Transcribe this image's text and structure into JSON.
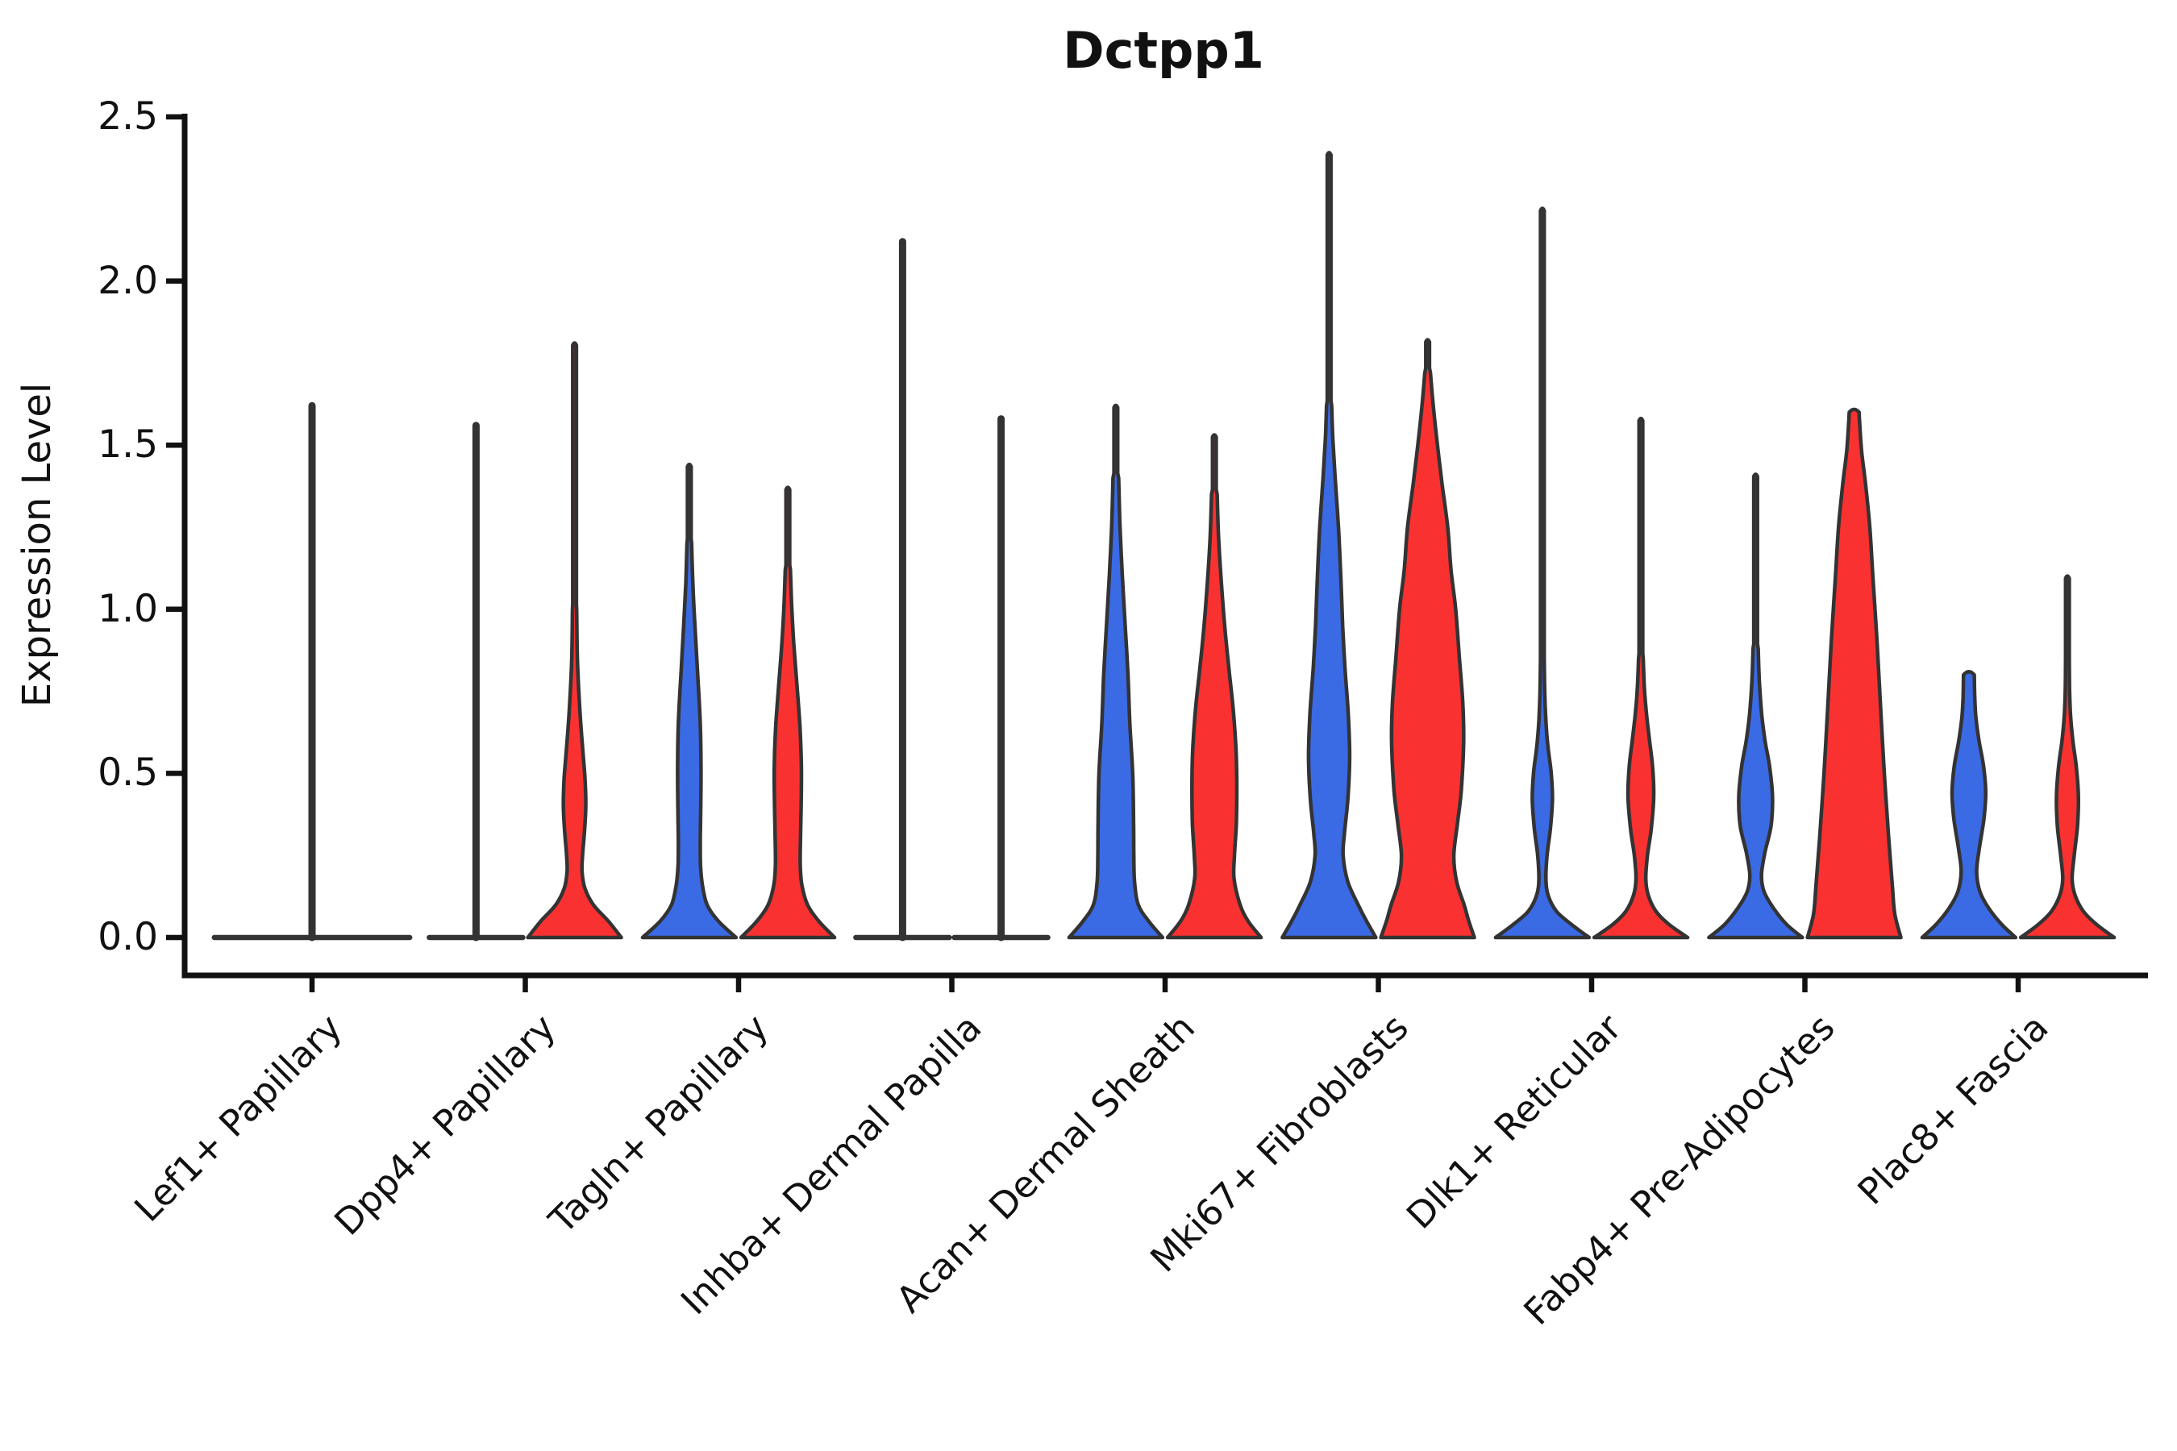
{
  "title": "Dctpp1",
  "ylabel": "Expression Level",
  "chart_data": {
    "type": "violin",
    "title": "Dctpp1",
    "xlabel": "",
    "ylabel": "Expression Level",
    "ylim": [
      -0.12,
      2.5
    ],
    "yticks": [
      0.0,
      0.5,
      1.0,
      1.5,
      2.0,
      2.5
    ],
    "ytick_labels": [
      "0.0",
      "0.5",
      "1.0",
      "1.5",
      "2.0",
      "2.5"
    ],
    "grid": false,
    "legend": "none",
    "outline_color": "#333333",
    "group_colors": {
      "blue": "#3B6AE5",
      "red": "#FA3131"
    },
    "categories": [
      "Lef1+ Papillary",
      "Dpp4+ Papillary",
      "Tagln+ Papillary",
      "Inhba+ Dermal Papilla",
      "Acan+ Dermal Sheath",
      "Mki67+ Fibroblasts",
      "Dlk1+ Reticular",
      "Fabp4+ Pre-Adipocytes",
      "Plac8+ Fascia"
    ],
    "cells": [
      {
        "category": "Lef1+ Papillary",
        "violins": [
          {
            "group": "single",
            "color": null,
            "offset": 0,
            "width": 2.09,
            "max": 1.62,
            "profile": [
              [
                0,
                1.0
              ]
            ]
          }
        ]
      },
      {
        "category": "Dpp4+ Papillary",
        "violins": [
          {
            "group": "blue",
            "color": "#3B6AE5",
            "offset": -0.231,
            "width": 1.0,
            "max": 1.56,
            "profile": [
              [
                0,
                1.0
              ]
            ]
          },
          {
            "group": "red",
            "color": "#FA3131",
            "offset": 0.231,
            "width": 1.0,
            "max": 1.81,
            "profile": [
              [
                0,
                1.0
              ],
              [
                0.05,
                0.72
              ],
              [
                0.1,
                0.4
              ],
              [
                0.15,
                0.22
              ],
              [
                0.2,
                0.16
              ],
              [
                0.25,
                0.17
              ],
              [
                0.32,
                0.21
              ],
              [
                0.4,
                0.24
              ],
              [
                0.48,
                0.225
              ],
              [
                0.58,
                0.17
              ],
              [
                0.7,
                0.11
              ],
              [
                0.85,
                0.06
              ],
              [
                1.0,
                0.045
              ]
            ]
          }
        ]
      },
      {
        "category": "Tagln+ Papillary",
        "violins": [
          {
            "group": "blue",
            "color": "#3B6AE5",
            "offset": -0.231,
            "width": 1.0,
            "max": 1.44,
            "profile": [
              [
                0,
                1.0
              ],
              [
                0.05,
                0.62
              ],
              [
                0.1,
                0.38
              ],
              [
                0.16,
                0.28
              ],
              [
                0.22,
                0.24
              ],
              [
                0.3,
                0.235
              ],
              [
                0.4,
                0.245
              ],
              [
                0.52,
                0.25
              ],
              [
                0.65,
                0.235
              ],
              [
                0.8,
                0.18
              ],
              [
                0.95,
                0.12
              ],
              [
                1.08,
                0.075
              ],
              [
                1.2,
                0.05
              ]
            ]
          },
          {
            "group": "red",
            "color": "#FA3131",
            "offset": 0.231,
            "width": 1.0,
            "max": 1.37,
            "profile": [
              [
                0,
                1.0
              ],
              [
                0.05,
                0.66
              ],
              [
                0.1,
                0.42
              ],
              [
                0.16,
                0.3
              ],
              [
                0.22,
                0.265
              ],
              [
                0.3,
                0.27
              ],
              [
                0.4,
                0.285
              ],
              [
                0.52,
                0.29
              ],
              [
                0.64,
                0.26
              ],
              [
                0.76,
                0.2
              ],
              [
                0.9,
                0.125
              ],
              [
                1.02,
                0.08
              ],
              [
                1.12,
                0.055
              ]
            ]
          }
        ]
      },
      {
        "category": "Inhba+ Dermal Papilla",
        "violins": [
          {
            "group": "blue",
            "color": "#3B6AE5",
            "offset": -0.231,
            "width": 1.0,
            "max": 2.12,
            "profile": [
              [
                0,
                1.0
              ]
            ]
          },
          {
            "group": "red",
            "color": "#FA3131",
            "offset": 0.231,
            "width": 1.0,
            "max": 1.58,
            "profile": [
              [
                0,
                1.0
              ]
            ]
          }
        ]
      },
      {
        "category": "Acan+ Dermal Sheath",
        "violins": [
          {
            "group": "blue",
            "color": "#3B6AE5",
            "offset": -0.231,
            "width": 1.0,
            "max": 1.62,
            "profile": [
              [
                0,
                1.0
              ],
              [
                0.05,
                0.7
              ],
              [
                0.1,
                0.48
              ],
              [
                0.17,
                0.4
              ],
              [
                0.25,
                0.385
              ],
              [
                0.35,
                0.38
              ],
              [
                0.5,
                0.36
              ],
              [
                0.65,
                0.3
              ],
              [
                0.8,
                0.26
              ],
              [
                0.95,
                0.2
              ],
              [
                1.1,
                0.14
              ],
              [
                1.25,
                0.09
              ],
              [
                1.4,
                0.06
              ]
            ]
          },
          {
            "group": "red",
            "color": "#FA3131",
            "offset": 0.231,
            "width": 1.0,
            "max": 1.53,
            "profile": [
              [
                0,
                1.0
              ],
              [
                0.05,
                0.72
              ],
              [
                0.1,
                0.55
              ],
              [
                0.18,
                0.42
              ],
              [
                0.25,
                0.43
              ],
              [
                0.35,
                0.47
              ],
              [
                0.47,
                0.48
              ],
              [
                0.58,
                0.46
              ],
              [
                0.7,
                0.4
              ],
              [
                0.82,
                0.31
              ],
              [
                0.95,
                0.22
              ],
              [
                1.08,
                0.15
              ],
              [
                1.22,
                0.09
              ],
              [
                1.35,
                0.06
              ]
            ]
          }
        ]
      },
      {
        "category": "Mki67+ Fibroblasts",
        "violins": [
          {
            "group": "blue",
            "color": "#3B6AE5",
            "offset": -0.231,
            "width": 1.0,
            "max": 2.39,
            "profile": [
              [
                0,
                1.0
              ],
              [
                0.05,
                0.8
              ],
              [
                0.1,
                0.62
              ],
              [
                0.17,
                0.4
              ],
              [
                0.25,
                0.3
              ],
              [
                0.32,
                0.33
              ],
              [
                0.42,
                0.4
              ],
              [
                0.55,
                0.44
              ],
              [
                0.68,
                0.41
              ],
              [
                0.82,
                0.34
              ],
              [
                0.95,
                0.29
              ],
              [
                1.1,
                0.25
              ],
              [
                1.25,
                0.2
              ],
              [
                1.4,
                0.13
              ],
              [
                1.52,
                0.08
              ],
              [
                1.62,
                0.055
              ]
            ]
          },
          {
            "group": "red",
            "color": "#FA3131",
            "offset": 0.231,
            "width": 1.0,
            "max": 1.82,
            "profile": [
              [
                0,
                1.0
              ],
              [
                0.05,
                0.88
              ],
              [
                0.1,
                0.78
              ],
              [
                0.17,
                0.62
              ],
              [
                0.25,
                0.56
              ],
              [
                0.35,
                0.64
              ],
              [
                0.45,
                0.72
              ],
              [
                0.6,
                0.77
              ],
              [
                0.72,
                0.75
              ],
              [
                0.85,
                0.68
              ],
              [
                1.0,
                0.6
              ],
              [
                1.12,
                0.5
              ],
              [
                1.25,
                0.43
              ],
              [
                1.38,
                0.31
              ],
              [
                1.5,
                0.21
              ],
              [
                1.62,
                0.12
              ],
              [
                1.72,
                0.06
              ]
            ]
          }
        ]
      },
      {
        "category": "Dlk1+ Reticular",
        "violins": [
          {
            "group": "blue",
            "color": "#3B6AE5",
            "offset": -0.231,
            "width": 1.0,
            "max": 2.22,
            "profile": [
              [
                0,
                1.0
              ],
              [
                0.04,
                0.62
              ],
              [
                0.08,
                0.3
              ],
              [
                0.13,
                0.12
              ],
              [
                0.18,
                0.075
              ],
              [
                0.25,
                0.1
              ],
              [
                0.33,
                0.17
              ],
              [
                0.42,
                0.215
              ],
              [
                0.5,
                0.19
              ],
              [
                0.58,
                0.12
              ],
              [
                0.66,
                0.075
              ],
              [
                0.75,
                0.05
              ],
              [
                0.85,
                0.04
              ]
            ]
          },
          {
            "group": "red",
            "color": "#FA3131",
            "offset": 0.231,
            "width": 1.0,
            "max": 1.58,
            "profile": [
              [
                0,
                1.0
              ],
              [
                0.04,
                0.6
              ],
              [
                0.08,
                0.32
              ],
              [
                0.13,
                0.155
              ],
              [
                0.18,
                0.105
              ],
              [
                0.25,
                0.14
              ],
              [
                0.33,
                0.22
              ],
              [
                0.43,
                0.275
              ],
              [
                0.52,
                0.25
              ],
              [
                0.6,
                0.185
              ],
              [
                0.68,
                0.12
              ],
              [
                0.76,
                0.075
              ],
              [
                0.85,
                0.05
              ]
            ]
          }
        ]
      },
      {
        "category": "Fabp4+ Pre-Adipocytes",
        "violins": [
          {
            "group": "blue",
            "color": "#3B6AE5",
            "offset": -0.231,
            "width": 1.0,
            "max": 1.41,
            "profile": [
              [
                0,
                1.0
              ],
              [
                0.04,
                0.66
              ],
              [
                0.09,
                0.38
              ],
              [
                0.14,
                0.18
              ],
              [
                0.19,
                0.125
              ],
              [
                0.26,
                0.2
              ],
              [
                0.34,
                0.33
              ],
              [
                0.43,
                0.36
              ],
              [
                0.52,
                0.3
              ],
              [
                0.6,
                0.2
              ],
              [
                0.68,
                0.13
              ],
              [
                0.78,
                0.08
              ],
              [
                0.88,
                0.055
              ]
            ]
          },
          {
            "group": "red",
            "color": "#FA3131",
            "offset": 0.231,
            "width": 1.0,
            "max": 1.6,
            "profile": [
              [
                0,
                1.0
              ],
              [
                0.07,
                0.87
              ],
              [
                0.15,
                0.82
              ],
              [
                0.3,
                0.74
              ],
              [
                0.5,
                0.645
              ],
              [
                0.7,
                0.565
              ],
              [
                0.9,
                0.49
              ],
              [
                1.1,
                0.4
              ],
              [
                1.25,
                0.335
              ],
              [
                1.38,
                0.245
              ],
              [
                1.48,
                0.16
              ],
              [
                1.56,
                0.12
              ],
              [
                1.6,
                0.105
              ]
            ]
          }
        ]
      },
      {
        "category": "Plac8+ Fascia",
        "violins": [
          {
            "group": "blue",
            "color": "#3B6AE5",
            "offset": -0.231,
            "width": 1.0,
            "max": 0.8,
            "profile": [
              [
                0,
                1.0
              ],
              [
                0.04,
                0.7
              ],
              [
                0.09,
                0.42
              ],
              [
                0.14,
                0.235
              ],
              [
                0.2,
                0.165
              ],
              [
                0.27,
                0.22
              ],
              [
                0.36,
                0.32
              ],
              [
                0.44,
                0.36
              ],
              [
                0.52,
                0.315
              ],
              [
                0.6,
                0.215
              ],
              [
                0.67,
                0.15
              ],
              [
                0.73,
                0.125
              ],
              [
                0.8,
                0.115
              ]
            ]
          },
          {
            "group": "red",
            "color": "#FA3131",
            "offset": 0.231,
            "width": 1.0,
            "max": 1.1,
            "profile": [
              [
                0,
                1.0
              ],
              [
                0.04,
                0.62
              ],
              [
                0.08,
                0.34
              ],
              [
                0.13,
                0.16
              ],
              [
                0.18,
                0.1
              ],
              [
                0.25,
                0.145
              ],
              [
                0.34,
                0.215
              ],
              [
                0.43,
                0.235
              ],
              [
                0.52,
                0.19
              ],
              [
                0.6,
                0.115
              ],
              [
                0.68,
                0.065
              ],
              [
                0.76,
                0.045
              ],
              [
                0.85,
                0.04
              ]
            ]
          }
        ]
      }
    ]
  }
}
